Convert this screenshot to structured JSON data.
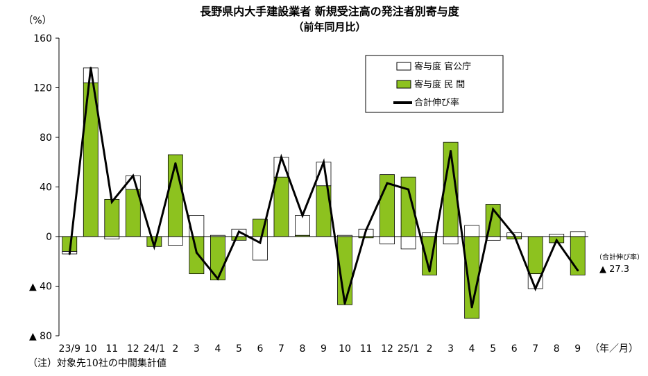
{
  "chart_data": {
    "type": "bar",
    "title": "長野県内大手建設業者 新規受注高の発注者別寄与度",
    "subtitle": "（前年同月比）",
    "y_unit": "（%）",
    "x_unit": "（年／月）",
    "ylim": [
      -80,
      160
    ],
    "yticks": [
      {
        "value": 160,
        "label": "160"
      },
      {
        "value": 120,
        "label": "120"
      },
      {
        "value": 80,
        "label": "80"
      },
      {
        "value": 40,
        "label": "40"
      },
      {
        "value": 0,
        "label": "0"
      },
      {
        "value": -40,
        "label": "▲ 40"
      },
      {
        "value": -80,
        "label": "▲ 80"
      }
    ],
    "categories": [
      "23/9",
      "10",
      "11",
      "12",
      "24/1",
      "2",
      "3",
      "4",
      "5",
      "6",
      "7",
      "8",
      "9",
      "10",
      "11",
      "12",
      "25/1",
      "2",
      "3",
      "4",
      "5",
      "6",
      "7",
      "8",
      "9"
    ],
    "series": [
      {
        "name": "寄与度 民 間",
        "color": "#8dc21f",
        "values": [
          -12,
          124,
          30,
          38,
          -8,
          66,
          -30,
          -35,
          -3,
          14,
          48,
          1,
          41,
          -55,
          -1,
          50,
          48,
          -31,
          76,
          -66,
          26,
          -2,
          -30,
          -5,
          -31
        ]
      },
      {
        "name": "寄与度 官公庁",
        "color": "#ffffff",
        "values": [
          -2,
          12,
          -2,
          11,
          0,
          -7,
          17,
          1,
          6,
          -19,
          16,
          16,
          19,
          1,
          6,
          -6,
          -10,
          3,
          -6,
          9,
          -3,
          3,
          -12,
          2,
          4
        ]
      },
      {
        "name": "合計伸び率",
        "color": "#000000",
        "values": [
          -14,
          136,
          28,
          49,
          -8,
          59,
          -13,
          -34,
          4,
          -5,
          64,
          17,
          60,
          -54,
          5,
          43,
          38,
          -28,
          69,
          -57,
          22,
          1,
          -42,
          -3,
          -27.3
        ]
      }
    ],
    "last_value_label": {
      "caption": "（合計伸び率）",
      "value": "▲ 27.3"
    },
    "note": "（注）対象先10社の中間集計値",
    "legend_position": "top-right",
    "grid": false
  }
}
